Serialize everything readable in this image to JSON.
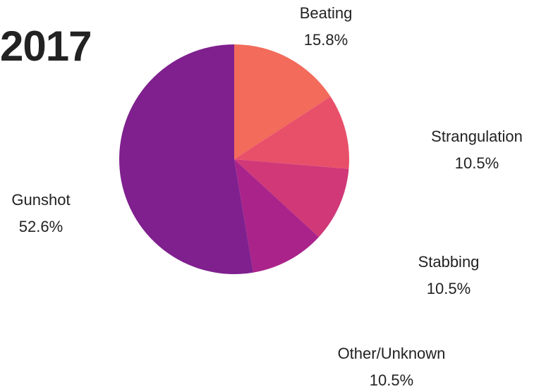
{
  "chart_data": {
    "type": "pie",
    "title": "2017",
    "categories": [
      "Beating",
      "Strangulation",
      "Stabbing",
      "Other/Unknown",
      "Gunshot"
    ],
    "values": [
      15.8,
      10.5,
      10.5,
      10.5,
      52.6
    ],
    "value_labels": [
      "15.8%",
      "10.5%",
      "10.5%",
      "10.5%",
      "52.6%"
    ],
    "colors": [
      "#f26b5b",
      "#e8506a",
      "#d03878",
      "#a9238a",
      "#7f208e"
    ]
  }
}
